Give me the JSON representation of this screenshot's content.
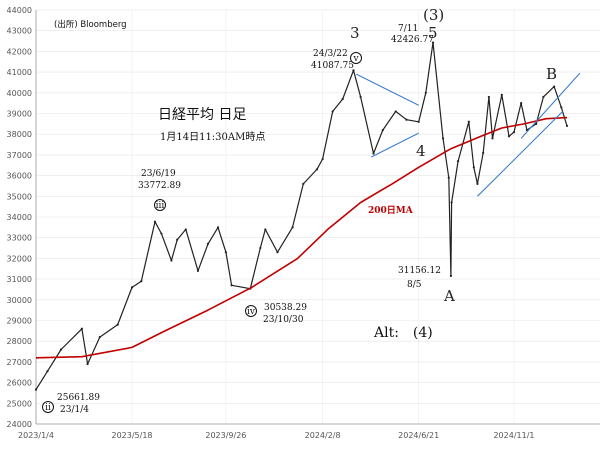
{
  "chart_data": {
    "type": "line",
    "title": "日経平均 日足",
    "subtitle": "1月14日11:30AM時点",
    "source": "(出所) Bloomberg",
    "ylim": [
      24000,
      44000
    ],
    "y_ticks": [
      24000,
      25000,
      26000,
      27000,
      28000,
      29000,
      30000,
      31000,
      32000,
      33000,
      34000,
      35000,
      36000,
      37000,
      38000,
      39000,
      40000,
      41000,
      42000,
      43000,
      44000
    ],
    "x_range": [
      "2023-01-04",
      "2025-01-14"
    ],
    "x_ticks": [
      {
        "date": "2023-01-04",
        "label": "2023/1/4"
      },
      {
        "date": "2023-05-18",
        "label": "2023/5/18"
      },
      {
        "date": "2023-09-26",
        "label": "2023/9/26"
      },
      {
        "date": "2024-02-08",
        "label": "2024/2/8"
      },
      {
        "date": "2024-06-21",
        "label": "2024/6/21"
      },
      {
        "date": "2024-11-01",
        "label": "2024/11/1"
      }
    ],
    "grid": true,
    "series": [
      {
        "name": "",
        "color": "#222222",
        "points": [
          [
            "2023-01-04",
            25661
          ],
          [
            "2023-01-20",
            26550
          ],
          [
            "2023-02-08",
            27600
          ],
          [
            "2023-03-09",
            28600
          ],
          [
            "2023-03-17",
            26900
          ],
          [
            "2023-04-03",
            28200
          ],
          [
            "2023-04-28",
            28800
          ],
          [
            "2023-05-18",
            30600
          ],
          [
            "2023-05-31",
            30900
          ],
          [
            "2023-06-19",
            33772
          ],
          [
            "2023-06-28",
            33200
          ],
          [
            "2023-07-12",
            31900
          ],
          [
            "2023-07-20",
            32900
          ],
          [
            "2023-08-01",
            33400
          ],
          [
            "2023-08-18",
            31400
          ],
          [
            "2023-09-01",
            32700
          ],
          [
            "2023-09-15",
            33500
          ],
          [
            "2023-09-26",
            32300
          ],
          [
            "2023-10-04",
            30700
          ],
          [
            "2023-10-30",
            30538
          ],
          [
            "2023-11-13",
            32500
          ],
          [
            "2023-11-20",
            33400
          ],
          [
            "2023-12-07",
            32300
          ],
          [
            "2023-12-28",
            33500
          ],
          [
            "2024-01-12",
            35600
          ],
          [
            "2024-01-31",
            36300
          ],
          [
            "2024-02-08",
            36800
          ],
          [
            "2024-02-22",
            39100
          ],
          [
            "2024-03-07",
            39700
          ],
          [
            "2024-03-22",
            41087
          ],
          [
            "2024-04-01",
            39800
          ],
          [
            "2024-04-19",
            37068
          ],
          [
            "2024-05-02",
            38200
          ],
          [
            "2024-05-20",
            39100
          ],
          [
            "2024-06-04",
            38700
          ],
          [
            "2024-06-21",
            38600
          ],
          [
            "2024-07-01",
            40000
          ],
          [
            "2024-07-11",
            42426
          ],
          [
            "2024-07-25",
            37800
          ],
          [
            "2024-08-02",
            35900
          ],
          [
            "2024-08-05",
            31156
          ],
          [
            "2024-08-06",
            34700
          ],
          [
            "2024-08-15",
            36700
          ],
          [
            "2024-08-30",
            38600
          ],
          [
            "2024-09-06",
            36400
          ],
          [
            "2024-09-11",
            35600
          ],
          [
            "2024-09-19",
            37100
          ],
          [
            "2024-09-27",
            39800
          ],
          [
            "2024-10-02",
            37800
          ],
          [
            "2024-10-15",
            39900
          ],
          [
            "2024-10-25",
            37900
          ],
          [
            "2024-11-01",
            38100
          ],
          [
            "2024-11-11",
            39500
          ],
          [
            "2024-11-19",
            38200
          ],
          [
            "2024-12-02",
            38500
          ],
          [
            "2024-12-12",
            39800
          ],
          [
            "2024-12-27",
            40300
          ],
          [
            "2025-01-06",
            39300
          ],
          [
            "2025-01-14",
            38400
          ]
        ]
      },
      {
        "name": "200日MA",
        "color": "#c00000",
        "points": [
          [
            "2023-01-04",
            27200
          ],
          [
            "2023-03-09",
            27250
          ],
          [
            "2023-05-18",
            27700
          ],
          [
            "2023-07-03",
            28500
          ],
          [
            "2023-09-01",
            29500
          ],
          [
            "2023-11-01",
            30600
          ],
          [
            "2024-01-04",
            32000
          ],
          [
            "2024-02-15",
            33400
          ],
          [
            "2024-04-01",
            34700
          ],
          [
            "2024-05-15",
            35600
          ],
          [
            "2024-06-21",
            36400
          ],
          [
            "2024-08-05",
            37300
          ],
          [
            "2024-09-16",
            37900
          ],
          [
            "2024-10-15",
            38300
          ],
          [
            "2024-11-15",
            38500
          ],
          [
            "2024-12-16",
            38750
          ],
          [
            "2025-01-14",
            38800
          ]
        ]
      }
    ],
    "trendlines": [
      {
        "from": [
          "2024-03-26",
          40900
        ],
        "to": [
          "2024-06-21",
          39400
        ],
        "color": "#3f7fc8"
      },
      {
        "from": [
          "2024-04-16",
          36900
        ],
        "to": [
          "2024-06-21",
          38050
        ],
        "color": "#3f7fc8"
      },
      {
        "from": [
          "2024-09-11",
          35000
        ],
        "to": [
          "2025-01-08",
          39100
        ],
        "color": "#3f7fc8"
      },
      {
        "from": [
          "2024-11-11",
          37800
        ],
        "to": [
          "2025-02-01",
          40950
        ],
        "color": "#3f7fc8"
      }
    ],
    "annotations": [
      {
        "id": "ann-low-2023-01",
        "marker": "ii",
        "lines": [
          "25661.89",
          "23/1/4"
        ]
      },
      {
        "id": "ann-high-2023-06",
        "marker": "iii",
        "lines": [
          "23/6/19",
          "33772.89"
        ]
      },
      {
        "id": "ann-low-2023-10",
        "marker": "iv",
        "lines": [
          "30538.29",
          "23/10/30"
        ]
      },
      {
        "id": "ann-high-2024-03",
        "marker": "v",
        "lines": [
          "24/3/22",
          "41087.75"
        ]
      },
      {
        "id": "ann-high-2024-07",
        "marker": "",
        "lines": [
          "7/11",
          "42426.77"
        ]
      },
      {
        "id": "ann-low-2024-08",
        "marker": "",
        "lines": [
          "31156.12",
          "8/5"
        ]
      }
    ],
    "wave_labels": {
      "w3": "3",
      "w3_paren": "(3)",
      "w5": "5",
      "w4": "4",
      "wA": "A",
      "wB": "B",
      "alt": "Alt:　(4)"
    },
    "ma_label": "200日MA"
  }
}
